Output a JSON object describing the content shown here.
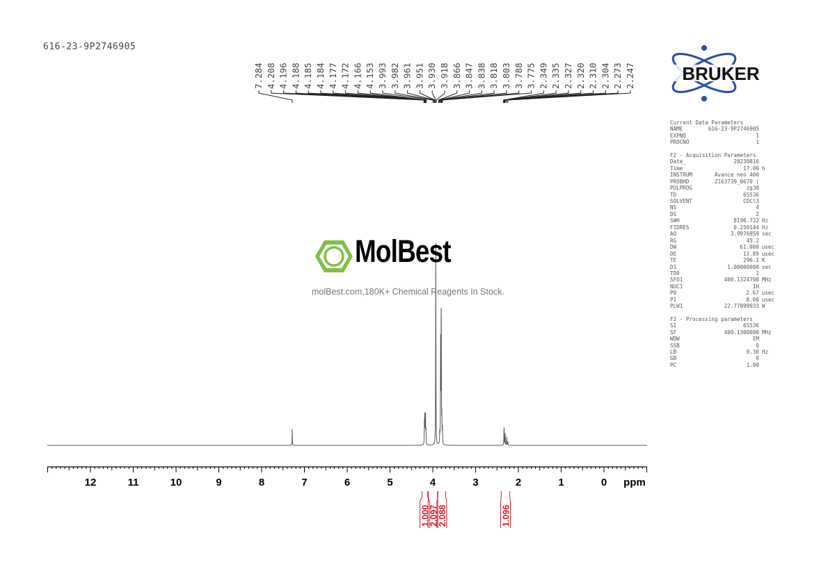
{
  "sample_name": "616-23-9P2746905",
  "bruker_logo": {
    "text": "BRUKER",
    "color": "#2a4fa0"
  },
  "molbest": {
    "brand": "MolBest",
    "tagline": "molBest.com,180K+ Chemical Reagents In Stock.",
    "color": "#7dc242"
  },
  "parameters": {
    "sections": [
      {
        "title": "Current Data Parameters",
        "rows": [
          [
            "NAME",
            "616-23-9P2746905",
            ""
          ],
          [
            "EXPNO",
            "1",
            ""
          ],
          [
            "PROCNO",
            "1",
            ""
          ]
        ]
      },
      {
        "title": "F2 - Acquisition Parameters",
        "rows": [
          [
            "Date_",
            "20230816",
            ""
          ],
          [
            "Time",
            "17.09",
            "h"
          ],
          [
            "INSTRUM",
            "Avance neo 400",
            ""
          ],
          [
            "PROBHD",
            "Z163739_0670 (",
            ""
          ],
          [
            "PULPROG",
            "zg30",
            ""
          ],
          [
            "TD",
            "65536",
            ""
          ],
          [
            "SOLVENT",
            "CDCl3",
            ""
          ],
          [
            "NS",
            "4",
            ""
          ],
          [
            "DS",
            "2",
            ""
          ],
          [
            "SWH",
            "8196.722",
            "Hz"
          ],
          [
            "FIDRES",
            "0.250144",
            "Hz"
          ],
          [
            "AQ",
            "3.9976959",
            "sec"
          ],
          [
            "RG",
            "45.2",
            ""
          ],
          [
            "DW",
            "61.000",
            "usec"
          ],
          [
            "DE",
            "13.89",
            "usec"
          ],
          [
            "TE",
            "296.1",
            "K"
          ],
          [
            "D1",
            "1.00000000",
            "sec"
          ],
          [
            "TD0",
            "1",
            ""
          ],
          [
            "SFO1",
            "400.1324708",
            "MHz"
          ],
          [
            "NUC1",
            "1H",
            ""
          ],
          [
            "P0",
            "2.67",
            "usec"
          ],
          [
            "P1",
            "8.00",
            "usec"
          ],
          [
            "PLW1",
            "22.77899933",
            "W"
          ]
        ]
      },
      {
        "title": "F2 - Processing parameters",
        "rows": [
          [
            "SI",
            "65536",
            ""
          ],
          [
            "SF",
            "400.1300000",
            "MHz"
          ],
          [
            "WDW",
            "EM",
            ""
          ],
          [
            "SSB",
            "0",
            ""
          ],
          [
            "LB",
            "0.30",
            "Hz"
          ],
          [
            "GB",
            "0",
            ""
          ],
          [
            "PC",
            "1.00",
            ""
          ]
        ]
      }
    ]
  },
  "chart_data": {
    "type": "line",
    "xlabel": "ppm",
    "xlim": [
      13,
      -1
    ],
    "x_ticks": [
      "12",
      "11",
      "10",
      "9",
      "8",
      "7",
      "6",
      "5",
      "4",
      "3",
      "2",
      "1",
      "0"
    ],
    "grid": false,
    "peak_labels": [
      "7.284",
      "4.208",
      "4.196",
      "4.188",
      "4.185",
      "4.184",
      "4.177",
      "4.172",
      "4.166",
      "4.153",
      "3.993",
      "3.982",
      "3.961",
      "3.951",
      "3.930",
      "3.918",
      "3.866",
      "3.847",
      "3.838",
      "3.818",
      "3.803",
      "3.788",
      "3.775",
      "2.349",
      "2.335",
      "2.327",
      "2.320",
      "2.310",
      "2.304",
      "2.273",
      "2.247"
    ],
    "signals": [
      {
        "ppm": 7.284,
        "intensity": 0.078
      },
      {
        "ppm": 4.196,
        "intensity": 0.11
      },
      {
        "ppm": 4.185,
        "intensity": 0.17
      },
      {
        "ppm": 4.172,
        "intensity": 0.15
      },
      {
        "ppm": 4.16,
        "intensity": 0.08
      },
      {
        "ppm": 3.93,
        "intensity": 1.0
      },
      {
        "ppm": 3.838,
        "intensity": 0.05
      },
      {
        "ppm": 3.818,
        "intensity": 0.5
      },
      {
        "ppm": 3.803,
        "intensity": 0.77
      },
      {
        "ppm": 3.788,
        "intensity": 0.12
      },
      {
        "ppm": 3.775,
        "intensity": 0.08
      },
      {
        "ppm": 2.335,
        "intensity": 0.1
      },
      {
        "ppm": 2.31,
        "intensity": 0.06
      },
      {
        "ppm": 2.273,
        "intensity": 0.04
      },
      {
        "ppm": 2.247,
        "intensity": 0.02
      }
    ],
    "integrals": [
      {
        "from": 4.25,
        "to": 4.12,
        "value": "1.000"
      },
      {
        "from": 4.1,
        "to": 3.89,
        "value": "2.097"
      },
      {
        "from": 3.88,
        "to": 3.7,
        "value": "2.088"
      },
      {
        "from": 2.4,
        "to": 2.2,
        "value": "1.096"
      }
    ],
    "integral_color": "#d0202a",
    "spectrum_color": "#555555"
  }
}
